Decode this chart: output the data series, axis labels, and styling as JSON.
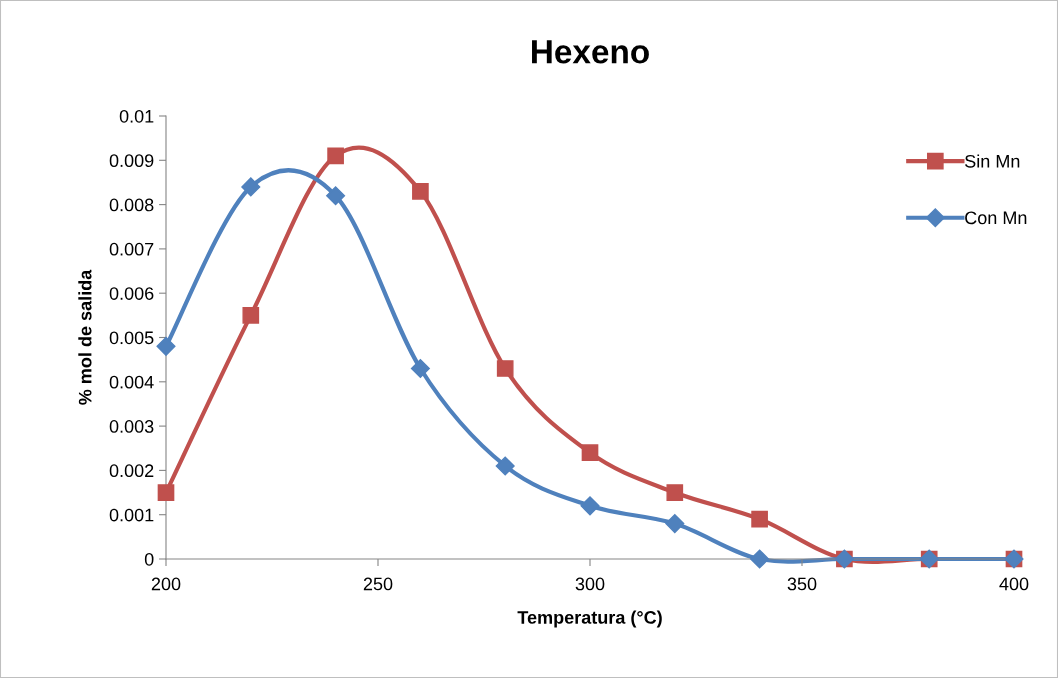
{
  "chart_data": {
    "type": "line",
    "title": "Hexeno",
    "xlabel": "Temperatura (°C)",
    "ylabel": "% mol de salida",
    "x": [
      200,
      220,
      240,
      260,
      280,
      300,
      320,
      340,
      360,
      380,
      400
    ],
    "series": [
      {
        "name": "Sin Mn",
        "color": "#c0504d",
        "marker": "square",
        "values": [
          0.0015,
          0.0055,
          0.0091,
          0.0083,
          0.0043,
          0.0024,
          0.0015,
          0.0009,
          0,
          0,
          0
        ]
      },
      {
        "name": "Con Mn",
        "color": "#4f81bd",
        "marker": "diamond",
        "values": [
          0.0048,
          0.0084,
          0.0082,
          0.0043,
          0.0021,
          0.0012,
          0.0008,
          0,
          0,
          0,
          0
        ]
      }
    ],
    "xlim": [
      200,
      400
    ],
    "xticks": [
      200,
      250,
      300,
      350,
      400
    ],
    "ylim": [
      0,
      0.01
    ],
    "yticks": [
      0,
      0.001,
      0.002,
      0.003,
      0.004,
      0.005,
      0.006,
      0.007,
      0.008,
      0.009,
      0.01
    ],
    "grid": false,
    "legend": "top right",
    "line_style": "solid"
  }
}
